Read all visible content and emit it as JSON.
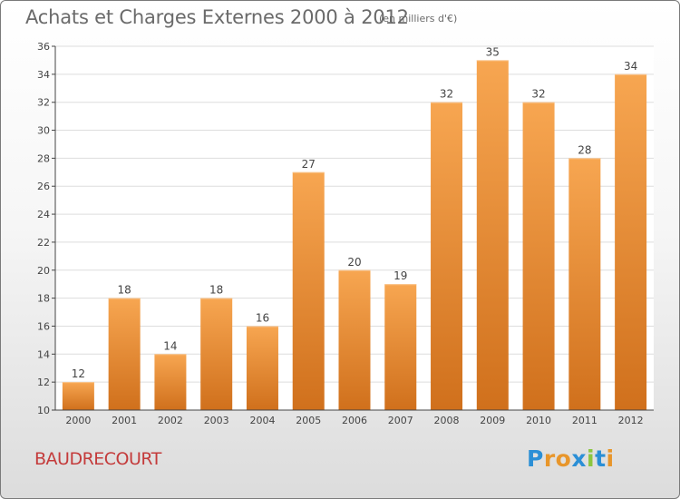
{
  "header": {
    "title": "Achats et Charges Externes 2000 à 2012",
    "subtitle": "(en milliers d'€)"
  },
  "commune": "BAUDRECOURT",
  "logo": {
    "letters": [
      "P",
      "r",
      "o",
      "x",
      "i",
      "t",
      "i"
    ],
    "colors": [
      "#2b8fd6",
      "#e8962b",
      "#e8962b",
      "#2b8fd6",
      "#8cc63f",
      "#2b8fd6",
      "#e8962b"
    ]
  },
  "chart_data": {
    "type": "bar",
    "title": "Achats et Charges Externes 2000 à 2012",
    "xlabel": "",
    "ylabel": "",
    "categories": [
      "2000",
      "2001",
      "2002",
      "2003",
      "2004",
      "2005",
      "2006",
      "2007",
      "2008",
      "2009",
      "2010",
      "2011",
      "2012"
    ],
    "values": [
      12,
      18,
      14,
      18,
      16,
      27,
      20,
      19,
      32,
      35,
      32,
      28,
      34
    ],
    "ylim": [
      10,
      36
    ],
    "yticks": [
      10,
      12,
      14,
      16,
      18,
      20,
      22,
      24,
      26,
      28,
      30,
      32,
      34,
      36
    ],
    "grid": true,
    "legend": "none",
    "colors": {
      "bar_top": "#f7a651",
      "bar_bottom": "#d0701c",
      "grid": "#dddddd",
      "axis": "#444444",
      "label": "#444444"
    }
  }
}
